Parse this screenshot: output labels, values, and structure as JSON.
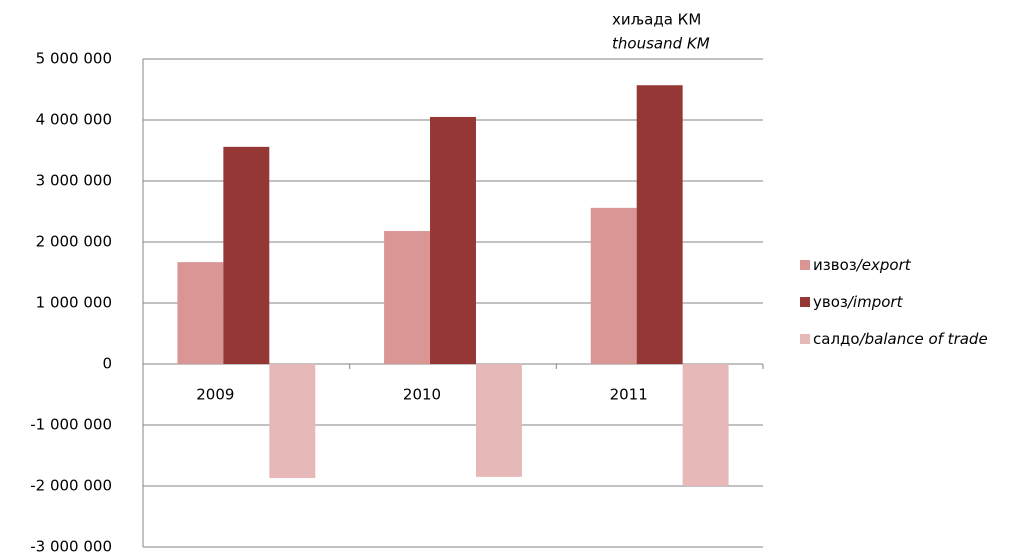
{
  "chart_data": {
    "type": "bar",
    "unit_label": "хиљада КМ",
    "unit_label_en": "thousand KM",
    "categories": [
      "2009",
      "2010",
      "2011"
    ],
    "series": [
      {
        "name": "извоз/export",
        "color": "#d99694",
        "values": [
          1670000,
          2180000,
          2560000
        ]
      },
      {
        "name": "увоз/import",
        "color": "#953735",
        "values": [
          3560000,
          4050000,
          4570000
        ]
      },
      {
        "name": "салдо/balance of trade",
        "color": "#e6b9b8",
        "values": [
          -1870000,
          -1850000,
          -2000000
        ]
      }
    ],
    "ylim": [
      -3000000,
      5000000
    ],
    "yticks": [
      {
        "value": -3000000,
        "label": "-3 000 000"
      },
      {
        "value": -2000000,
        "label": "-2 000 000"
      },
      {
        "value": -1000000,
        "label": "-1 000 000"
      },
      0,
      {
        "value": 1000000,
        "label": "1 000 000"
      },
      {
        "value": 2000000,
        "label": "2 000 000"
      },
      {
        "value": 3000000,
        "label": "3 000 000"
      },
      {
        "value": 4000000,
        "label": "4 000 000"
      },
      {
        "value": 5000000,
        "label": "5 000 000"
      }
    ],
    "grid": true,
    "legend": "right"
  }
}
